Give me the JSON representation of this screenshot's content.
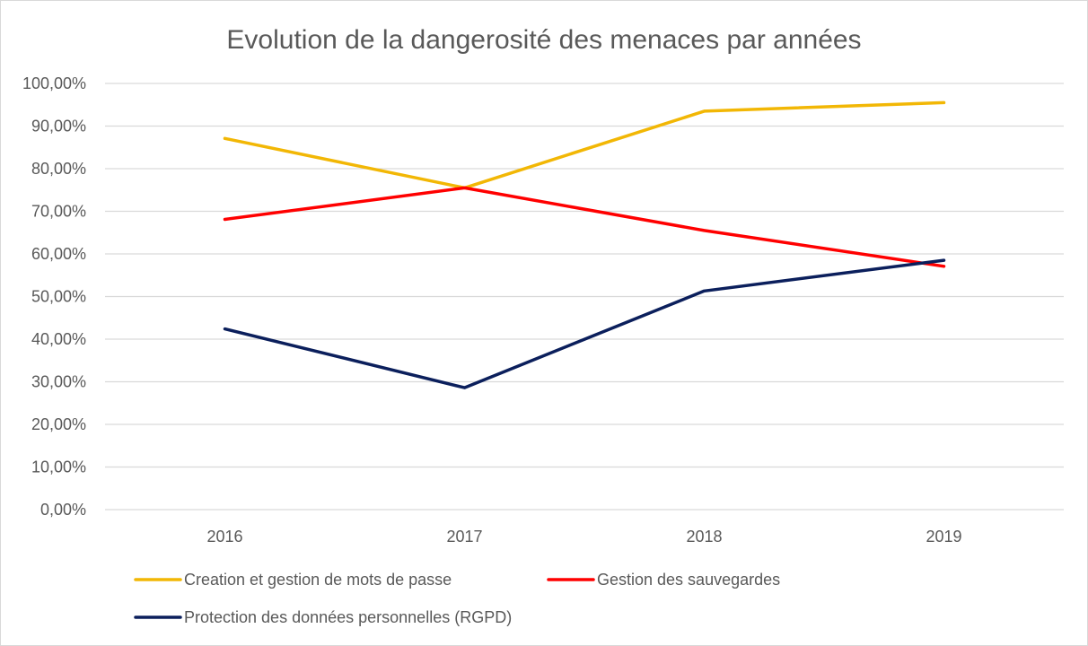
{
  "chart_data": {
    "type": "line",
    "title": "Evolution de la dangerosité des menaces par années",
    "xlabel": "",
    "ylabel": "",
    "categories": [
      "2016",
      "2017",
      "2018",
      "2019"
    ],
    "ylim": [
      0,
      100
    ],
    "yticks": [
      0,
      10,
      20,
      30,
      40,
      50,
      60,
      70,
      80,
      90,
      100
    ],
    "ytick_labels": [
      "0,00%",
      "10,00%",
      "20,00%",
      "30,00%",
      "40,00%",
      "50,00%",
      "60,00%",
      "70,00%",
      "80,00%",
      "90,00%",
      "100,00%"
    ],
    "grid": true,
    "legend_position": "bottom",
    "series": [
      {
        "name": "Creation et gestion de mots de passe",
        "color": "#f2b705",
        "values": [
          87.1,
          75.5,
          93.5,
          95.5
        ]
      },
      {
        "name": "Gestion des sauvegardes",
        "color": "#ff0000",
        "values": [
          68.1,
          75.5,
          65.5,
          57.1
        ]
      },
      {
        "name": "Protection des données personnelles (RGPD)",
        "color": "#0b1f5c",
        "values": [
          42.4,
          28.6,
          51.3,
          58.5
        ]
      }
    ]
  }
}
